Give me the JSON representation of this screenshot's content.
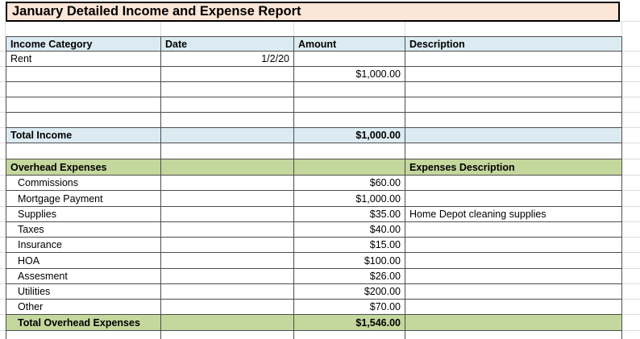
{
  "colors": {
    "title_bg": "#FBE6D8",
    "income_header_bg": "#DCEBF2",
    "expense_header_bg": "#C4D79D",
    "table_border": "#4D4D4D",
    "gridline": "#DCDCDC"
  },
  "report": {
    "title": "January Detailed Income and Expense Report",
    "columns": {
      "income_category": "Income Category",
      "date": "Date",
      "amount": "Amount",
      "description": "Description"
    },
    "income": {
      "entry_category": "Rent",
      "entry_date": "1/2/20",
      "entry_amount": "$1,000.00",
      "total_label": "Total Income",
      "total_amount": "$1,000.00"
    },
    "expenses": {
      "section_label": "Overhead Expenses",
      "description_header": "Expenses Description",
      "items": [
        {
          "name": "Commissions",
          "amount": "$60.00",
          "description": ""
        },
        {
          "name": "Mortgage Payment",
          "amount": "$1,000.00",
          "description": ""
        },
        {
          "name": "Supplies",
          "amount": "$35.00",
          "description": "Home Depot cleaning supplies"
        },
        {
          "name": "Taxes",
          "amount": "$40.00",
          "description": ""
        },
        {
          "name": "Insurance",
          "amount": "$15.00",
          "description": ""
        },
        {
          "name": "HOA",
          "amount": "$100.00",
          "description": ""
        },
        {
          "name": "Assesment",
          "amount": "$26.00",
          "description": ""
        },
        {
          "name": "Utilities",
          "amount": "$200.00",
          "description": ""
        },
        {
          "name": "Other",
          "amount": "$70.00",
          "description": ""
        }
      ],
      "total_label": "Total Overhead Expenses",
      "total_amount": "$1,546.00"
    }
  }
}
